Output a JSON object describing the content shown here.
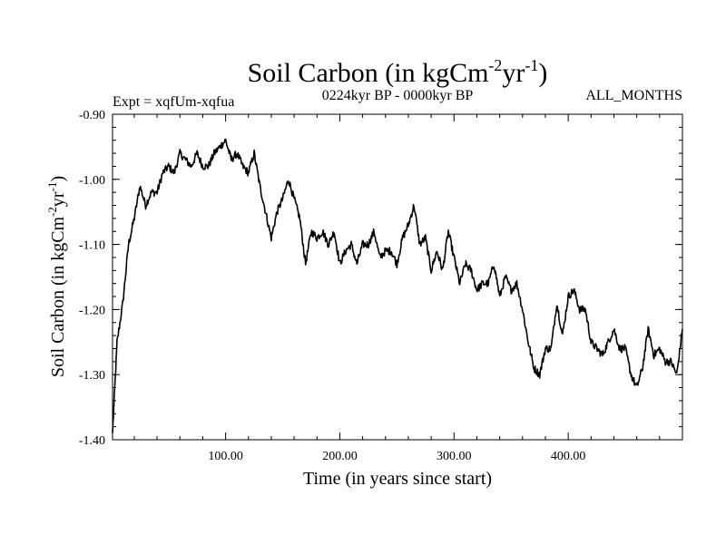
{
  "chart_data": {
    "type": "line",
    "title": "Soil Carbon (in kgCm",
    "title_sup1": "-2",
    "title_mid": "yr",
    "title_sup2": "-1",
    "title_end": ")",
    "subtitle_left": "Expt = xqfUm-xqfua",
    "subtitle_center": "0224kyr BP - 0000kyr BP",
    "subtitle_right": "ALL_MONTHS",
    "xlabel": "Time (in years since start)",
    "ylabel_main": "Soil Carbon (in kgCm",
    "ylabel_sup1": "-2",
    "ylabel_mid": "yr",
    "ylabel_sup2": "-1",
    "ylabel_end": ")",
    "xlim": [
      1,
      500
    ],
    "ylim": [
      -1.4,
      -0.9
    ],
    "xticks": [
      100,
      200,
      300,
      400
    ],
    "xtick_labels": [
      "100.00",
      "200.00",
      "300.00",
      "400.00"
    ],
    "yticks": [
      -1.4,
      -1.3,
      -1.2,
      -1.1,
      -1.0,
      -0.9
    ],
    "ytick_labels": [
      "-1.40",
      "-1.30",
      "-1.20",
      "-1.10",
      "-1.00",
      "-0.90"
    ],
    "line_color": "#000000",
    "series": [
      {
        "name": "Soil Carbon",
        "x": [
          1,
          5,
          10,
          15,
          20,
          25,
          30,
          35,
          40,
          45,
          50,
          55,
          60,
          65,
          70,
          75,
          80,
          85,
          90,
          95,
          100,
          105,
          110,
          115,
          120,
          125,
          130,
          135,
          140,
          145,
          150,
          155,
          160,
          165,
          170,
          175,
          180,
          185,
          190,
          195,
          200,
          205,
          210,
          215,
          220,
          225,
          230,
          235,
          240,
          245,
          250,
          255,
          260,
          265,
          270,
          275,
          280,
          285,
          290,
          295,
          300,
          305,
          310,
          315,
          320,
          325,
          330,
          335,
          340,
          345,
          350,
          355,
          360,
          365,
          370,
          375,
          380,
          385,
          390,
          395,
          400,
          405,
          410,
          415,
          420,
          425,
          430,
          435,
          440,
          445,
          450,
          455,
          460,
          465,
          470,
          475,
          480,
          485,
          490,
          495,
          500
        ],
        "y": [
          -1.39,
          -1.25,
          -1.19,
          -1.1,
          -1.06,
          -1.01,
          -1.04,
          -1.02,
          -1.02,
          -0.99,
          -0.98,
          -0.99,
          -0.96,
          -0.97,
          -0.98,
          -0.96,
          -0.98,
          -0.98,
          -0.96,
          -0.95,
          -0.94,
          -0.97,
          -0.96,
          -0.98,
          -0.99,
          -0.96,
          -1.01,
          -1.05,
          -1.09,
          -1.05,
          -1.03,
          -1.0,
          -1.03,
          -1.06,
          -1.13,
          -1.08,
          -1.09,
          -1.08,
          -1.1,
          -1.08,
          -1.13,
          -1.11,
          -1.1,
          -1.13,
          -1.1,
          -1.1,
          -1.08,
          -1.12,
          -1.11,
          -1.11,
          -1.13,
          -1.09,
          -1.07,
          -1.04,
          -1.1,
          -1.09,
          -1.14,
          -1.11,
          -1.14,
          -1.08,
          -1.12,
          -1.16,
          -1.13,
          -1.14,
          -1.17,
          -1.16,
          -1.16,
          -1.13,
          -1.18,
          -1.15,
          -1.17,
          -1.16,
          -1.2,
          -1.25,
          -1.29,
          -1.3,
          -1.26,
          -1.26,
          -1.19,
          -1.24,
          -1.18,
          -1.17,
          -1.2,
          -1.2,
          -1.25,
          -1.26,
          -1.27,
          -1.25,
          -1.23,
          -1.26,
          -1.26,
          -1.3,
          -1.32,
          -1.29,
          -1.23,
          -1.27,
          -1.26,
          -1.28,
          -1.28,
          -1.3,
          -1.23
        ]
      }
    ]
  }
}
